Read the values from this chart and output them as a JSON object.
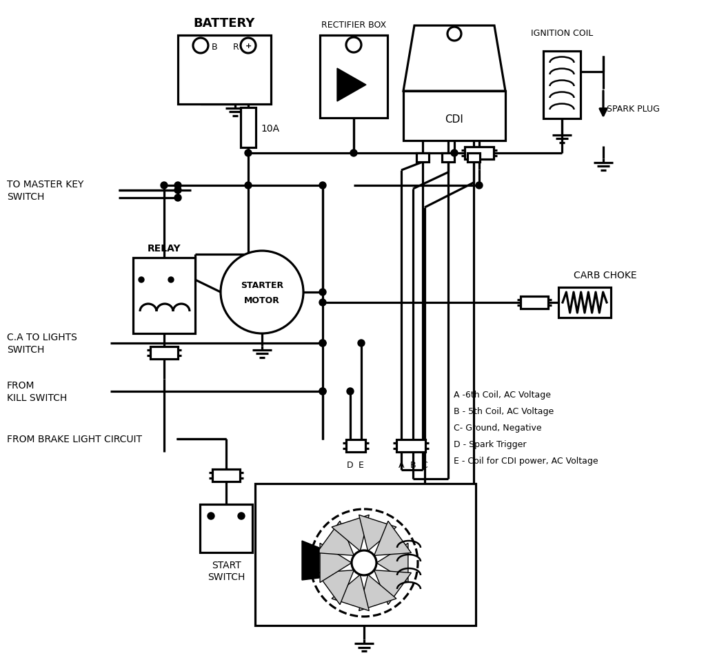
{
  "bg": "#ffffff",
  "lc": "#000000",
  "lw": 2.3,
  "labels": {
    "battery": "BATTERY",
    "rectifier": "RECTIFIER BOX",
    "cdi": "CDI",
    "ignition_coil": "IGNITION COIL",
    "spark_plug": "SPARK PLUG",
    "relay": "RELAY",
    "sm1": "STARTER",
    "sm2": "MOTOR",
    "carb_choke": "CARB CHOKE",
    "mk1": "TO MASTER KEY",
    "mk2": "SWITCH",
    "cal1": "C.A TO LIGHTS",
    "cal2": "SWITCH",
    "fk1": "FROM",
    "fk2": "KILL SWITCH",
    "fbl": "FROM BRAKE LIGHT CIRCUIT",
    "ss1": "START",
    "ss2": "SWITCH",
    "fuse": "10A",
    "bat_b": "B",
    "bat_r": "R",
    "leg_a": "A -6th Coil, AC Voltage",
    "leg_b": "B - 5th Coil, AC Voltage",
    "leg_c": "C- Ground, Negative",
    "leg_d": "D - Spark Trigger",
    "leg_e": "E - Coil for CDI power, AC Voltage",
    "pin_a": "A",
    "pin_b": "B",
    "pin_c": "C",
    "pin_d": "D",
    "pin_e": "E"
  }
}
